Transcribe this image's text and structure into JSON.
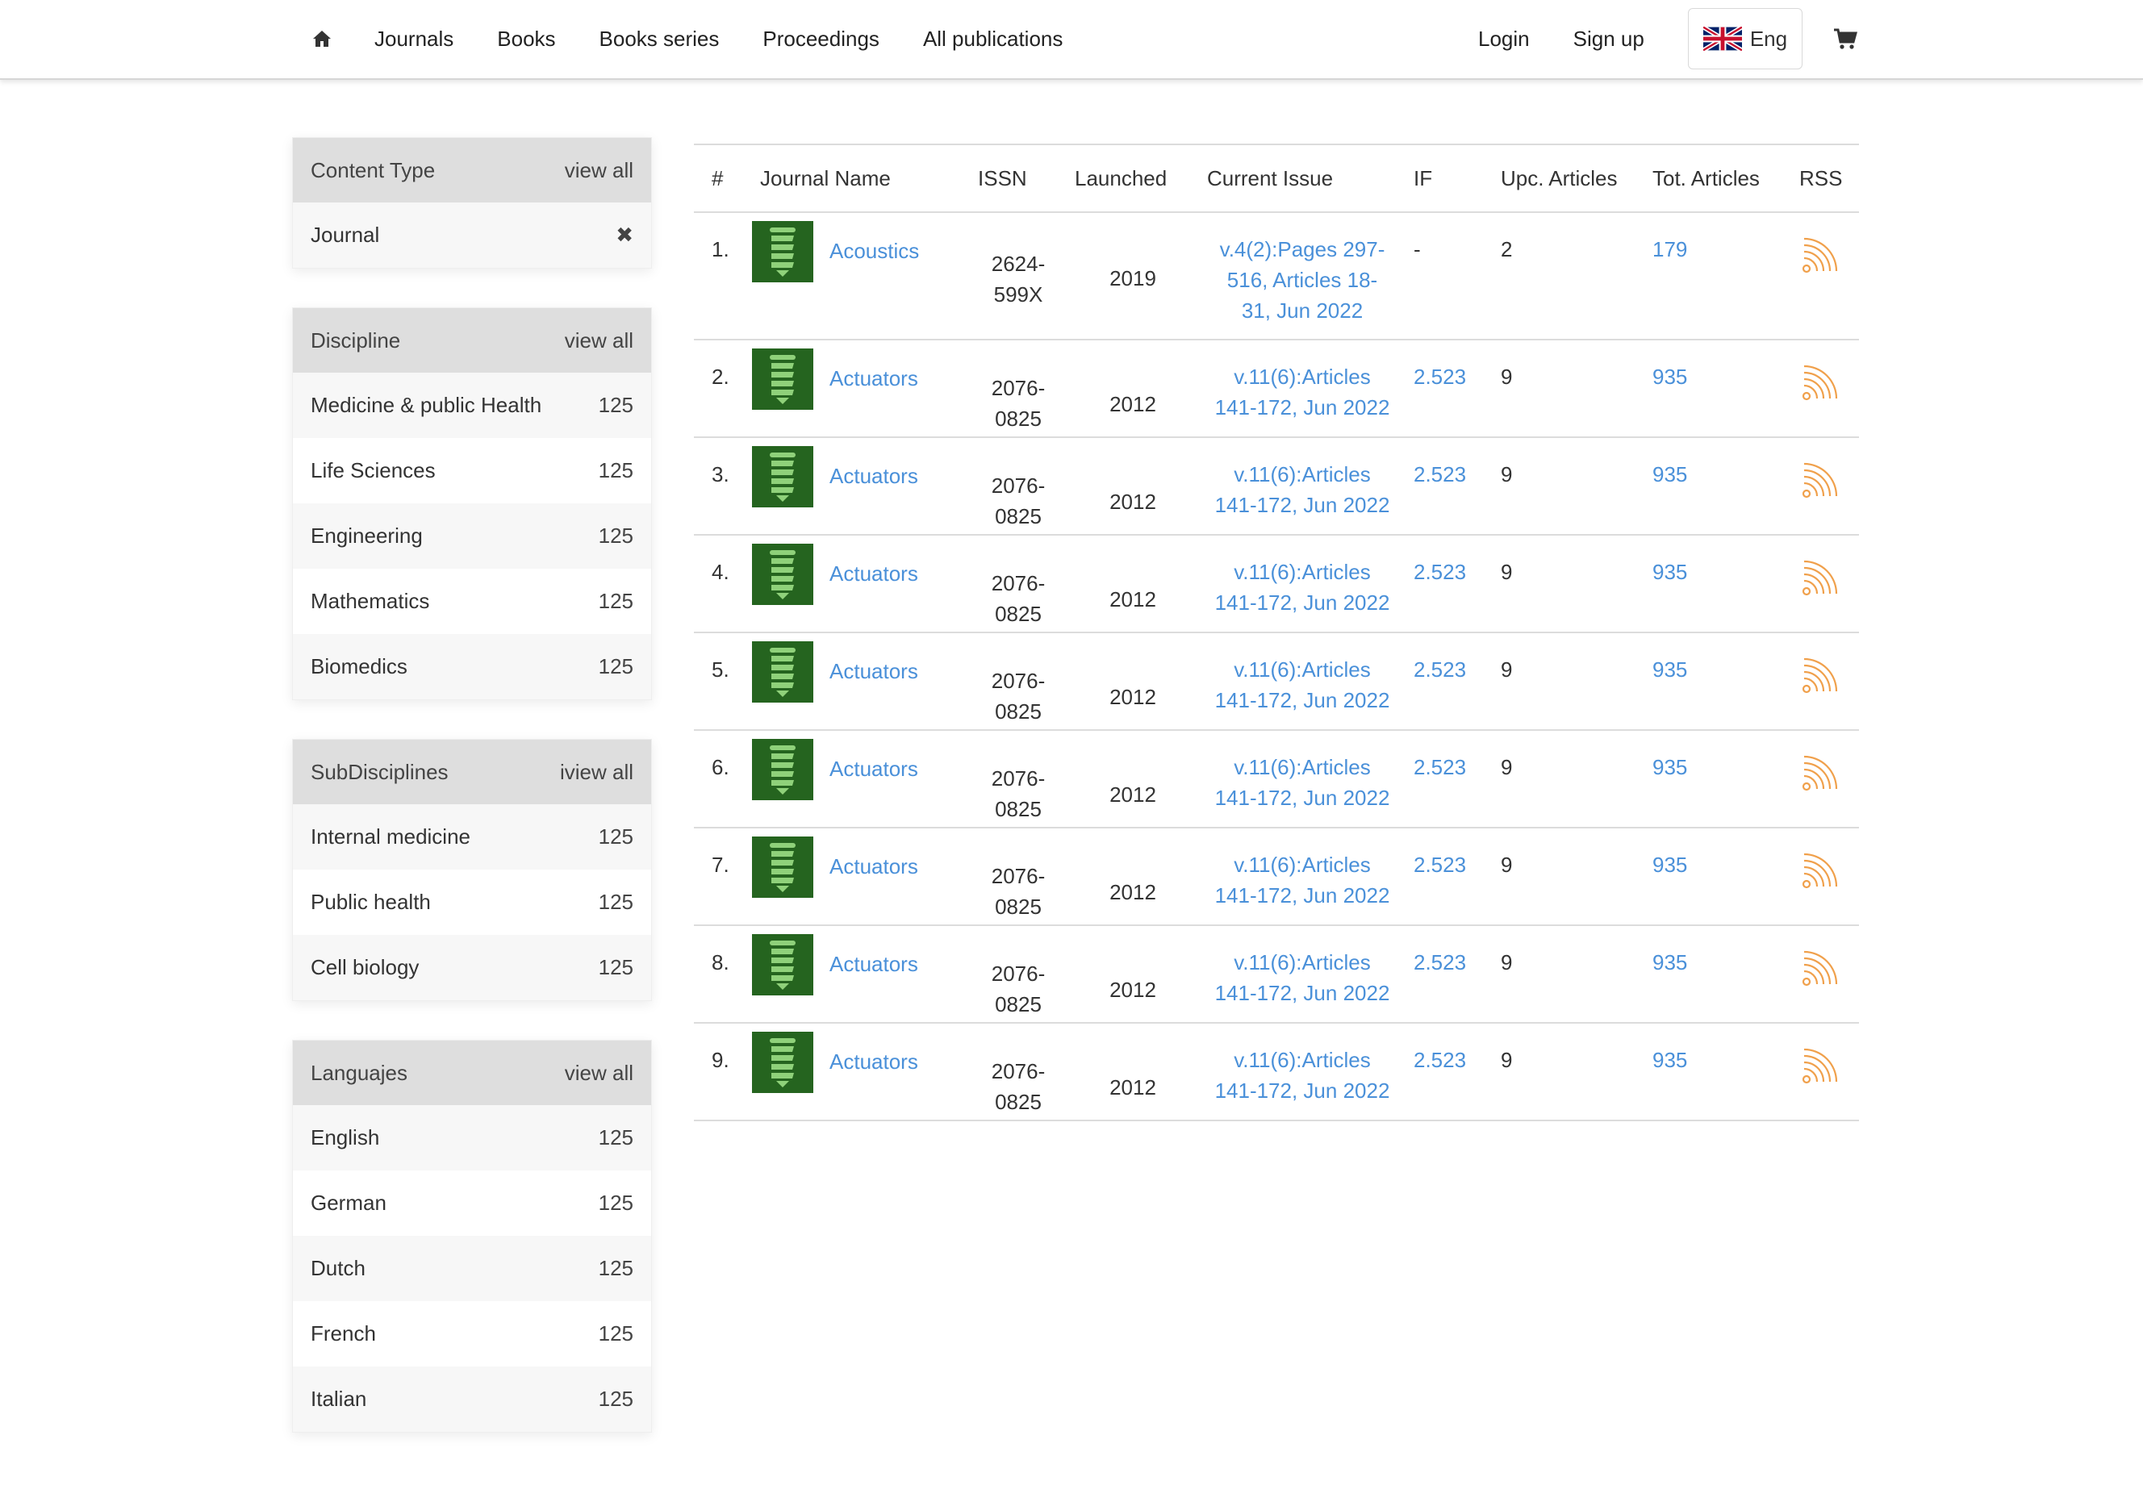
{
  "nav": {
    "home_icon": "home-icon",
    "links": [
      "Journals",
      "Books",
      "Books series",
      "Proceedings",
      "All publications"
    ],
    "login": "Login",
    "signup": "Sign up",
    "language": "Eng",
    "flag_icon": "uk-flag-icon",
    "cart_icon": "shopping-cart-icon"
  },
  "sidebar": {
    "content_type": {
      "title": "Content Type",
      "view_all": "view all",
      "items": [
        {
          "label": "Journal"
        }
      ]
    },
    "discipline": {
      "title": "Discipline",
      "view_all": "view all",
      "items": [
        {
          "label": "Medicine & public Health",
          "count": "125"
        },
        {
          "label": "Life Sciences",
          "count": "125"
        },
        {
          "label": "Engineering",
          "count": "125"
        },
        {
          "label": "Mathematics",
          "count": "125"
        },
        {
          "label": "Biomedics",
          "count": "125"
        }
      ]
    },
    "subdisciplines": {
      "title": "SubDisciplines",
      "view_all": "iview all",
      "items": [
        {
          "label": "Internal medicine",
          "count": "125"
        },
        {
          "label": "Public health",
          "count": "125"
        },
        {
          "label": "Cell biology",
          "count": "125"
        }
      ]
    },
    "languages": {
      "title": "Languajes",
      "view_all": "view all",
      "items": [
        {
          "label": "English",
          "count": "125"
        },
        {
          "label": "German",
          "count": "125"
        },
        {
          "label": "Dutch",
          "count": "125"
        },
        {
          "label": "French",
          "count": "125"
        },
        {
          "label": "Italian",
          "count": "125"
        }
      ]
    }
  },
  "table": {
    "headers": [
      "#",
      "Journal Name",
      "ISSN",
      "Launched",
      "Current Issue",
      "IF",
      "Upc. Articles",
      "Tot. Articles",
      "RSS"
    ],
    "rows": [
      {
        "num": "1.",
        "name": "Acoustics",
        "issn1": "2624-",
        "issn2": "599X",
        "launched": "2019",
        "issue1": "v.4(2):Pages 297-",
        "issue2": "516, Articles 18-",
        "issue3": "31, Jun 2022",
        "if": "-",
        "upc": "2",
        "tot": "179"
      },
      {
        "num": "2.",
        "name": "Actuators",
        "issn1": "2076-",
        "issn2": "0825",
        "launched": "2012",
        "issue1": "v.11(6):Articles",
        "issue2": "141-172, Jun 2022",
        "issue3": "",
        "if": "2.523",
        "upc": "9",
        "tot": "935"
      },
      {
        "num": "3.",
        "name": "Actuators",
        "issn1": "2076-",
        "issn2": "0825",
        "launched": "2012",
        "issue1": "v.11(6):Articles",
        "issue2": "141-172, Jun 2022",
        "issue3": "",
        "if": "2.523",
        "upc": "9",
        "tot": "935"
      },
      {
        "num": "4.",
        "name": "Actuators",
        "issn1": "2076-",
        "issn2": "0825",
        "launched": "2012",
        "issue1": "v.11(6):Articles",
        "issue2": "141-172, Jun 2022",
        "issue3": "",
        "if": "2.523",
        "upc": "9",
        "tot": "935"
      },
      {
        "num": "5.",
        "name": "Actuators",
        "issn1": "2076-",
        "issn2": "0825",
        "launched": "2012",
        "issue1": "v.11(6):Articles",
        "issue2": "141-172, Jun 2022",
        "issue3": "",
        "if": "2.523",
        "upc": "9",
        "tot": "935"
      },
      {
        "num": "6.",
        "name": "Actuators",
        "issn1": "2076-",
        "issn2": "0825",
        "launched": "2012",
        "issue1": "v.11(6):Articles",
        "issue2": "141-172, Jun 2022",
        "issue3": "",
        "if": "2.523",
        "upc": "9",
        "tot": "935"
      },
      {
        "num": "7.",
        "name": "Actuators",
        "issn1": "2076-",
        "issn2": "0825",
        "launched": "2012",
        "issue1": "v.11(6):Articles",
        "issue2": "141-172, Jun 2022",
        "issue3": "",
        "if": "2.523",
        "upc": "9",
        "tot": "935"
      },
      {
        "num": "8.",
        "name": "Actuators",
        "issn1": "2076-",
        "issn2": "0825",
        "launched": "2012",
        "issue1": "v.11(6):Articles",
        "issue2": "141-172, Jun 2022",
        "issue3": "",
        "if": "2.523",
        "upc": "9",
        "tot": "935"
      },
      {
        "num": "9.",
        "name": "Actuators",
        "issn1": "2076-",
        "issn2": "0825",
        "launched": "2012",
        "issue1": "v.11(6):Articles",
        "issue2": "141-172, Jun 2022",
        "issue3": "",
        "if": "2.523",
        "upc": "9",
        "tot": "935"
      }
    ]
  },
  "colors": {
    "link": "#4a90d9",
    "rss": "#f0a04b",
    "logo_bg": "#25641f",
    "logo_fg": "#8fd17a",
    "panel_head": "#dedede"
  }
}
